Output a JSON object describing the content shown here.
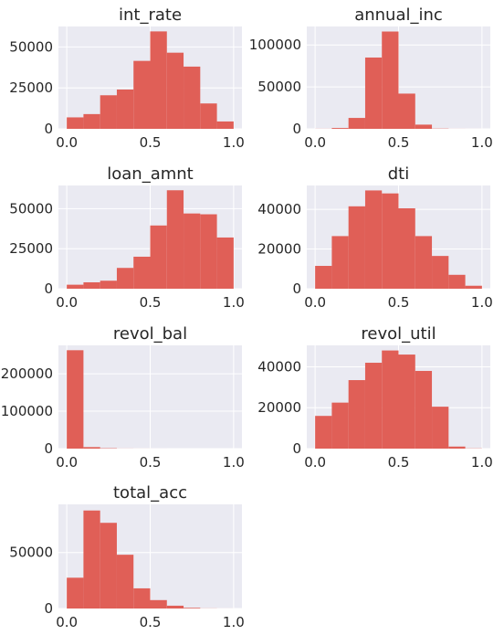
{
  "chart_data": [
    {
      "type": "bar",
      "title": "int_rate",
      "bin_edges": [
        0.0,
        0.1,
        0.2,
        0.3,
        0.4,
        0.5,
        0.6,
        0.7,
        0.8,
        0.9,
        1.0
      ],
      "values": [
        7000,
        9000,
        20500,
        24000,
        41500,
        59500,
        46500,
        38000,
        15500,
        4500
      ],
      "xlim": [
        -0.05,
        1.05
      ],
      "ylim": [
        0,
        62500
      ],
      "xticks": [
        0.0,
        0.5,
        1.0
      ],
      "xtick_labels": [
        "0.0",
        "0.5",
        "1.0"
      ],
      "yticks": [
        0,
        25000,
        50000
      ],
      "ytick_labels": [
        "0",
        "25000",
        "50000"
      ]
    },
    {
      "type": "bar",
      "title": "annual_inc",
      "bin_edges": [
        0.0,
        0.1,
        0.2,
        0.3,
        0.4,
        0.5,
        0.6,
        0.7,
        0.8,
        0.9,
        1.0
      ],
      "values": [
        100,
        1000,
        13000,
        85000,
        116000,
        42000,
        5000,
        300,
        50,
        20
      ],
      "xlim": [
        -0.05,
        1.05
      ],
      "ylim": [
        0,
        122000
      ],
      "xticks": [
        0.0,
        0.5,
        1.0
      ],
      "xtick_labels": [
        "0.0",
        "0.5",
        "1.0"
      ],
      "yticks": [
        0,
        50000,
        100000
      ],
      "ytick_labels": [
        "0",
        "50000",
        "100000"
      ]
    },
    {
      "type": "bar",
      "title": "loan_amnt",
      "bin_edges": [
        0.0,
        0.1,
        0.2,
        0.3,
        0.4,
        0.5,
        0.6,
        0.7,
        0.8,
        0.9,
        1.0
      ],
      "values": [
        2500,
        4000,
        5000,
        13000,
        20000,
        39500,
        61500,
        47000,
        46500,
        32000
      ],
      "xlim": [
        -0.05,
        1.05
      ],
      "ylim": [
        0,
        64500
      ],
      "xticks": [
        0.0,
        0.5,
        1.0
      ],
      "xtick_labels": [
        "0.0",
        "0.5",
        "1.0"
      ],
      "yticks": [
        0,
        25000,
        50000
      ],
      "ytick_labels": [
        "0",
        "25000",
        "50000"
      ]
    },
    {
      "type": "bar",
      "title": "dti",
      "bin_edges": [
        0.0,
        0.1,
        0.2,
        0.3,
        0.4,
        0.5,
        0.6,
        0.7,
        0.8,
        0.9,
        1.0
      ],
      "values": [
        11500,
        26500,
        41500,
        49500,
        48000,
        40500,
        26500,
        16500,
        7000,
        1500
      ],
      "xlim": [
        -0.05,
        1.05
      ],
      "ylim": [
        0,
        52000
      ],
      "xticks": [
        0.0,
        0.5,
        1.0
      ],
      "xtick_labels": [
        "0.0",
        "0.5",
        "1.0"
      ],
      "yticks": [
        0,
        20000,
        40000
      ],
      "ytick_labels": [
        "0",
        "20000",
        "40000"
      ]
    },
    {
      "type": "bar",
      "title": "revol_bal",
      "bin_edges": [
        0.0,
        0.1,
        0.2,
        0.3,
        0.4,
        0.5,
        0.6,
        0.7,
        0.8,
        0.9,
        1.0
      ],
      "values": [
        263000,
        4000,
        1000,
        200,
        80,
        40,
        20,
        10,
        5,
        5
      ],
      "xlim": [
        -0.05,
        1.05
      ],
      "ylim": [
        0,
        276000
      ],
      "xticks": [
        0.0,
        0.5,
        1.0
      ],
      "xtick_labels": [
        "0.0",
        "0.5",
        "1.0"
      ],
      "yticks": [
        0,
        100000,
        200000
      ],
      "ytick_labels": [
        "0",
        "100000",
        "200000"
      ]
    },
    {
      "type": "bar",
      "title": "revol_util",
      "bin_edges": [
        0.0,
        0.1,
        0.2,
        0.3,
        0.4,
        0.5,
        0.6,
        0.7,
        0.8,
        0.9,
        1.0
      ],
      "values": [
        16000,
        22500,
        33500,
        42000,
        48000,
        46000,
        38000,
        20500,
        1000,
        100
      ],
      "xlim": [
        -0.05,
        1.05
      ],
      "ylim": [
        0,
        50500
      ],
      "xticks": [
        0.0,
        0.5,
        1.0
      ],
      "xtick_labels": [
        "0.0",
        "0.5",
        "1.0"
      ],
      "yticks": [
        0,
        20000,
        40000
      ],
      "ytick_labels": [
        "0",
        "20000",
        "40000"
      ]
    },
    {
      "type": "bar",
      "title": "total_acc",
      "bin_edges": [
        0.0,
        0.1,
        0.2,
        0.3,
        0.4,
        0.5,
        0.6,
        0.7,
        0.8,
        0.9,
        1.0
      ],
      "values": [
        27500,
        87500,
        76500,
        48000,
        18000,
        7500,
        2500,
        600,
        100,
        20
      ],
      "xlim": [
        -0.05,
        1.05
      ],
      "ylim": [
        0,
        93000
      ],
      "xticks": [
        0.0,
        0.5,
        1.0
      ],
      "xtick_labels": [
        "0.0",
        "0.5",
        "1.0"
      ],
      "yticks": [
        0,
        50000
      ],
      "ytick_labels": [
        "0",
        "50000"
      ]
    }
  ],
  "colors": {
    "bar": "#e05f57",
    "plot_background": "#eaeaf2",
    "grid": "#ffffff",
    "text": "#262626"
  }
}
